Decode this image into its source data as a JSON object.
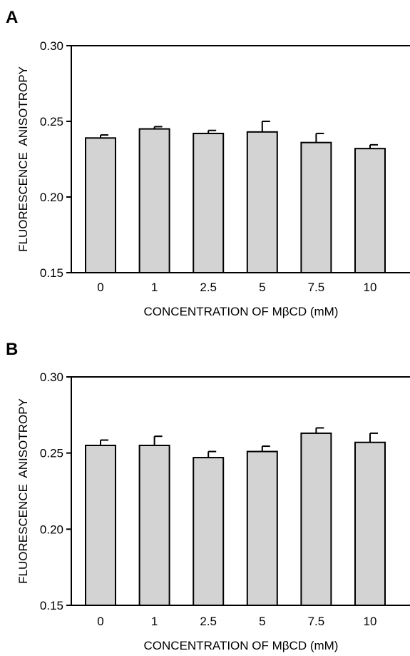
{
  "colors": {
    "bar_fill": "#d3d3d3",
    "stroke": "#000000",
    "background": "#ffffff"
  },
  "chart_data": [
    {
      "panel": "A",
      "type": "bar",
      "categories": [
        "0",
        "1",
        "2.5",
        "5",
        "7.5",
        "10"
      ],
      "values": [
        0.239,
        0.245,
        0.242,
        0.243,
        0.236,
        0.232
      ],
      "errors": [
        0.002,
        0.0015,
        0.002,
        0.007,
        0.006,
        0.0025
      ],
      "xlabel": "CONCENTRATION OF MβCD (mM)",
      "ylabel": "FLUORESCENCE  ANISOTROPY",
      "ylim": [
        0.15,
        0.3
      ],
      "yticks": [
        "0.15",
        "0.20",
        "0.25",
        "0.30"
      ],
      "grid": false
    },
    {
      "panel": "B",
      "type": "bar",
      "categories": [
        "0",
        "1",
        "2.5",
        "5",
        "7.5",
        "10"
      ],
      "values": [
        0.255,
        0.255,
        0.247,
        0.251,
        0.263,
        0.257
      ],
      "errors": [
        0.0035,
        0.006,
        0.004,
        0.0035,
        0.0035,
        0.006
      ],
      "xlabel": "CONCENTRATION OF MβCD (mM)",
      "ylabel": "FLUORESCENCE  ANISOTROPY",
      "ylim": [
        0.15,
        0.3
      ],
      "yticks": [
        "0.15",
        "0.20",
        "0.25",
        "0.30"
      ],
      "grid": false
    }
  ]
}
